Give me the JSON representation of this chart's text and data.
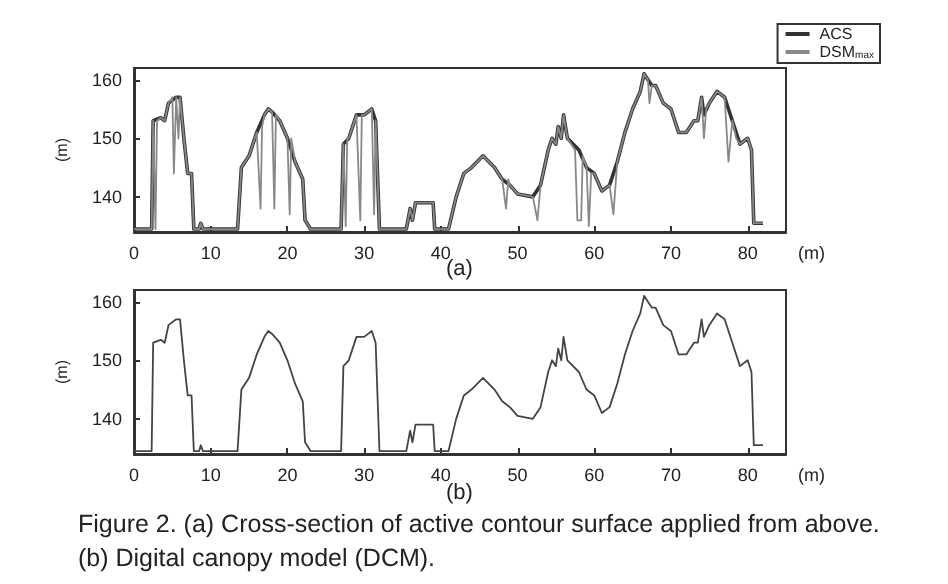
{
  "chart_data": [
    {
      "type": "line",
      "title": "(a)",
      "xlabel": "(m)",
      "ylabel": "(m)",
      "xlim": [
        0,
        85
      ],
      "xticks": [
        0,
        10,
        20,
        30,
        40,
        50,
        60,
        70,
        80
      ],
      "ylim": [
        134,
        162
      ],
      "yticks": [
        140,
        150,
        160
      ],
      "legend": "top right",
      "series": [
        {
          "name": "ACS",
          "color": "#333333",
          "x": [
            0,
            2.3,
            2.5,
            3.5,
            4,
            4.5,
            5.5,
            6,
            6.5,
            7,
            7.5,
            7.8,
            8.5,
            8.7,
            9,
            13.5,
            14,
            15,
            16,
            17,
            17.5,
            18,
            19,
            20,
            21,
            22,
            22.3,
            22.8,
            23,
            27,
            27.3,
            28,
            29,
            30,
            31,
            31.5,
            32,
            35.5,
            36,
            36.3,
            36.7,
            38,
            39,
            39.2,
            41,
            42,
            43,
            44,
            45.5,
            47,
            48,
            49,
            50,
            52,
            53,
            54,
            54.5,
            55,
            55.3,
            55.7,
            56,
            56.5,
            58,
            59,
            60,
            61,
            62,
            63,
            64,
            65,
            66,
            66.5,
            67,
            67.5,
            68,
            69,
            70,
            71,
            72,
            73,
            73.5,
            74,
            74.3,
            75,
            76,
            77,
            78,
            79,
            80,
            80.5,
            80.8,
            82
          ],
          "values": [
            134.5,
            134.5,
            153,
            153.5,
            153,
            156,
            157,
            157,
            150,
            144,
            144,
            134.5,
            134.5,
            135.5,
            134.5,
            134.5,
            145,
            147,
            151,
            154,
            155,
            154.5,
            153,
            150,
            146,
            143,
            136,
            135,
            134.5,
            134.5,
            149,
            150,
            154,
            154,
            155,
            153,
            134.5,
            134.5,
            138,
            136,
            139,
            139,
            139,
            134.5,
            134.5,
            140,
            144,
            145,
            147,
            145,
            143,
            142,
            140.5,
            140,
            142,
            148,
            150,
            149,
            152,
            150,
            154,
            150,
            148,
            145,
            144,
            141,
            142,
            146,
            151,
            155,
            158,
            161,
            160,
            159,
            159,
            156,
            155,
            151,
            151,
            153,
            153,
            157,
            154,
            156,
            158,
            157,
            153,
            149,
            150,
            148,
            135.5,
            135.5
          ]
        },
        {
          "name": "DSM$_{max}$",
          "color": "#888888",
          "x": [
            0,
            2.3,
            2.5,
            2.8,
            3,
            3.5,
            4,
            4.5,
            5,
            5.2,
            5.5,
            5.8,
            6,
            6.5,
            7,
            7.5,
            7.8,
            8.5,
            8.7,
            9,
            13.5,
            14,
            15,
            16,
            16.5,
            16.7,
            17,
            17.5,
            18,
            18.3,
            18.5,
            19,
            20,
            20.3,
            20.5,
            21,
            22,
            22.3,
            22.8,
            23,
            27,
            27.3,
            27.6,
            27.8,
            28,
            29,
            29.5,
            29.7,
            30,
            31,
            31.3,
            31.5,
            32,
            35.5,
            36,
            36.3,
            36.7,
            38,
            39,
            39.2,
            41,
            42,
            43,
            44,
            45.5,
            47,
            48,
            48.5,
            48.8,
            49,
            50,
            52,
            52.6,
            53,
            54,
            54.5,
            55,
            55.3,
            55.7,
            56,
            56.5,
            57.5,
            57.8,
            58.3,
            58.5,
            59,
            59.3,
            59.6,
            60,
            61,
            62,
            62.5,
            63,
            64,
            65,
            66,
            66.5,
            67,
            67.2,
            67.5,
            68,
            69,
            70,
            71,
            72,
            73,
            73.5,
            74,
            74.3,
            74.6,
            75,
            76,
            77,
            77.5,
            78,
            78.5,
            79,
            80,
            80.5,
            80.8,
            82
          ],
          "values": [
            134.5,
            134.5,
            153,
            134.5,
            153,
            153.5,
            153,
            156,
            157,
            144,
            157,
            150,
            157,
            150,
            144,
            144,
            134.5,
            134.5,
            135.5,
            134.5,
            134.5,
            145,
            147,
            151,
            138,
            152,
            154,
            155,
            154.5,
            138,
            154,
            153,
            150,
            137,
            150,
            146,
            143,
            136,
            135,
            134.5,
            134.5,
            149,
            135,
            150,
            150,
            154,
            136,
            154,
            154,
            155,
            137,
            153,
            134.5,
            134.5,
            138,
            136,
            139,
            139,
            139,
            134.5,
            134.5,
            140,
            144,
            145,
            147,
            145,
            143,
            138,
            143,
            142,
            140.5,
            140,
            136,
            142,
            148,
            150,
            149,
            152,
            150,
            154,
            150,
            148,
            136,
            136,
            147,
            145,
            135,
            144,
            144,
            141,
            142,
            137,
            146,
            151,
            155,
            158,
            161,
            160,
            156,
            159,
            159,
            156,
            155,
            151,
            151,
            153,
            153,
            157,
            150,
            155,
            156,
            158,
            157,
            146,
            153,
            150,
            149,
            150,
            148,
            135.5,
            135.5
          ]
        }
      ]
    },
    {
      "type": "line",
      "title": "(b)",
      "xlabel": "(m)",
      "ylabel": "(m)",
      "xlim": [
        0,
        85
      ],
      "xticks": [
        0,
        10,
        20,
        30,
        40,
        50,
        60,
        70,
        80
      ],
      "ylim": [
        134,
        162
      ],
      "yticks": [
        140,
        150,
        160
      ],
      "annotations": [
        "Figure 2.  (a) Cross-section of active contour surface applied from above.",
        "(b) Digital canopy model (DCM)."
      ],
      "series": [
        {
          "color": "#444444",
          "x": [
            0,
            2.3,
            2.5,
            3.5,
            4,
            4.5,
            5.5,
            6,
            6.5,
            7,
            7.5,
            7.8,
            8.5,
            8.7,
            9,
            13.5,
            14,
            15,
            16,
            17,
            17.5,
            18,
            19,
            20,
            21,
            22,
            22.3,
            22.8,
            23,
            27,
            27.3,
            28,
            29,
            30,
            31,
            31.5,
            32,
            35.5,
            36,
            36.3,
            36.7,
            38,
            39,
            39.2,
            41,
            42,
            43,
            44,
            45.5,
            47,
            48,
            49,
            50,
            52,
            53,
            54,
            54.5,
            55,
            55.3,
            55.7,
            56,
            56.5,
            58,
            59,
            60,
            61,
            62,
            63,
            64,
            65,
            66,
            66.5,
            67,
            67.5,
            68,
            69,
            70,
            71,
            72,
            73,
            73.5,
            74,
            74.3,
            75,
            76,
            77,
            78,
            79,
            80,
            80.5,
            80.8,
            82
          ],
          "values": [
            134.5,
            134.5,
            153,
            153.5,
            153,
            156,
            157,
            157,
            150,
            144,
            144,
            134.5,
            134.5,
            135.5,
            134.5,
            134.5,
            145,
            147,
            151,
            154,
            155,
            154.5,
            153,
            150,
            146,
            143,
            136,
            135,
            134.5,
            134.5,
            149,
            150,
            154,
            154,
            155,
            153,
            134.5,
            134.5,
            138,
            136,
            139,
            139,
            139,
            134.5,
            134.5,
            140,
            144,
            145,
            147,
            145,
            143,
            142,
            140.5,
            140,
            142,
            148,
            150,
            149,
            152,
            150,
            154,
            150,
            148,
            145,
            144,
            141,
            142,
            146,
            151,
            155,
            158,
            161,
            160,
            159,
            159,
            156,
            155,
            151,
            151,
            153,
            153,
            157,
            154,
            156,
            158,
            157,
            153,
            149,
            150,
            148,
            135.5,
            135.5
          ]
        }
      ]
    }
  ]
}
